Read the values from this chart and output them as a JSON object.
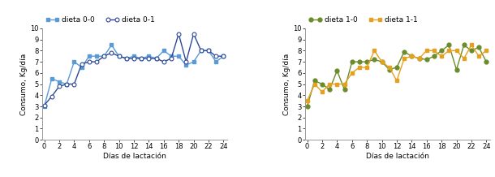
{
  "dieta_00_x": [
    0,
    1,
    2,
    3,
    4,
    5,
    6,
    7,
    8,
    9,
    10,
    11,
    12,
    13,
    14,
    15,
    16,
    17,
    18,
    19,
    20,
    21,
    22,
    23,
    24
  ],
  "dieta_00_y": [
    3.0,
    5.5,
    5.2,
    5.0,
    7.0,
    6.5,
    7.5,
    7.5,
    7.5,
    8.5,
    7.5,
    7.3,
    7.5,
    7.3,
    7.5,
    7.3,
    8.0,
    7.5,
    7.5,
    6.7,
    7.0,
    8.0,
    8.0,
    7.0,
    7.5
  ],
  "dieta_01_x": [
    0,
    1,
    2,
    3,
    4,
    5,
    6,
    7,
    8,
    9,
    10,
    11,
    12,
    13,
    14,
    15,
    16,
    17,
    18,
    19,
    20,
    21,
    22,
    23,
    24
  ],
  "dieta_01_y": [
    3.1,
    3.9,
    4.8,
    5.0,
    5.0,
    6.8,
    7.0,
    7.0,
    7.5,
    7.8,
    7.5,
    7.3,
    7.3,
    7.3,
    7.3,
    7.3,
    7.0,
    7.3,
    9.5,
    7.0,
    9.5,
    8.0,
    8.0,
    7.5,
    7.5
  ],
  "dieta_10_x": [
    0,
    1,
    2,
    3,
    4,
    5,
    6,
    7,
    8,
    9,
    10,
    11,
    12,
    13,
    14,
    15,
    16,
    17,
    18,
    19,
    20,
    21,
    22,
    23,
    24
  ],
  "dieta_10_y": [
    3.0,
    5.3,
    5.0,
    4.5,
    6.2,
    4.5,
    7.0,
    7.0,
    7.0,
    7.2,
    7.0,
    6.3,
    6.5,
    7.9,
    7.5,
    7.3,
    7.2,
    7.5,
    8.0,
    8.5,
    6.3,
    8.5,
    8.0,
    8.3,
    7.0
  ],
  "dieta_11_x": [
    0,
    1,
    2,
    3,
    4,
    5,
    6,
    7,
    8,
    9,
    10,
    11,
    12,
    13,
    14,
    15,
    16,
    17,
    18,
    19,
    20,
    21,
    22,
    23,
    24
  ],
  "dieta_11_y": [
    3.5,
    5.0,
    4.3,
    5.0,
    5.0,
    5.0,
    6.0,
    6.5,
    6.5,
    8.0,
    7.0,
    6.5,
    5.3,
    7.3,
    7.5,
    7.3,
    8.0,
    8.0,
    7.5,
    8.0,
    8.0,
    7.3,
    8.5,
    7.5,
    8.0
  ],
  "color_00": "#5b9bd5",
  "color_01": "#2e4999",
  "color_10": "#6b8c2a",
  "color_11": "#e6a020",
  "ylabel": "Consumo, Kg/día",
  "xlabel": "Días de lactación",
  "ylim": [
    0,
    10
  ],
  "yticks": [
    0,
    1,
    2,
    3,
    4,
    5,
    6,
    7,
    8,
    9,
    10
  ],
  "xticks": [
    0,
    2,
    4,
    6,
    8,
    10,
    12,
    14,
    16,
    18,
    20,
    22,
    24
  ],
  "legend1": [
    "dieta 0-0",
    "dieta 0-1"
  ],
  "legend2": [
    "dieta 1-0",
    "dieta 1-1"
  ],
  "xlim": [
    -0.3,
    24.5
  ]
}
